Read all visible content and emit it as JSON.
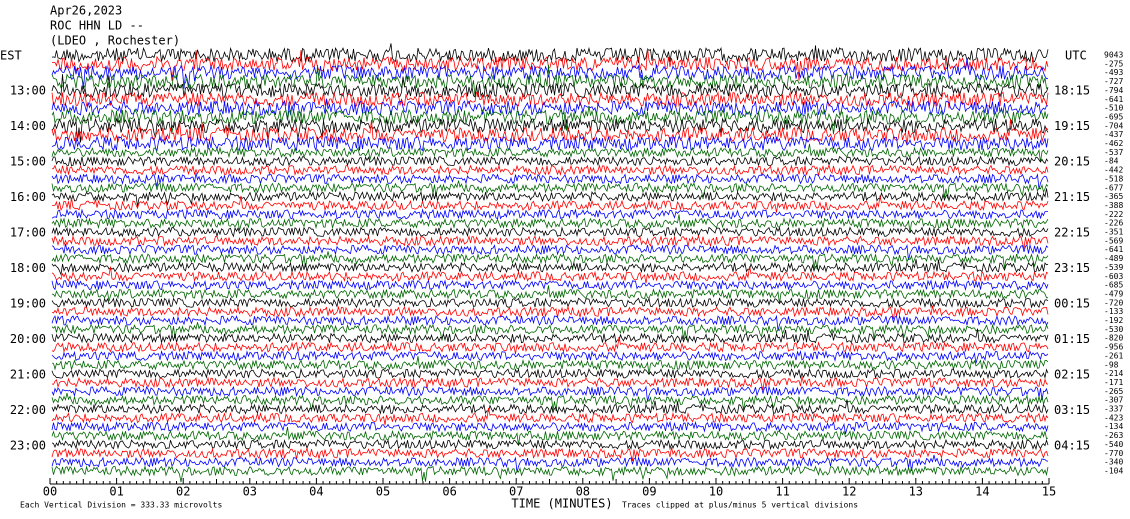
{
  "header": {
    "lines": [
      "Apr26,2023",
      "ROC HHN LD --",
      "(LDEO , Rochester)"
    ]
  },
  "left_axis": {
    "title": "EST",
    "labels": [
      "13:00",
      "14:00",
      "15:00",
      "16:00",
      "17:00",
      "18:00",
      "19:00",
      "20:00",
      "21:00",
      "22:00",
      "23:00"
    ]
  },
  "right_axis": {
    "title": "UTC",
    "labels": [
      "18:15",
      "19:15",
      "20:15",
      "21:15",
      "22:15",
      "23:15",
      "00:15",
      "01:15",
      "02:15",
      "03:15",
      "04:15"
    ]
  },
  "trace_offsets": [
    9043,
    -275,
    -493,
    -727,
    -794,
    -641,
    -510,
    -695,
    -704,
    -437,
    -462,
    -537,
    -84,
    -442,
    -518,
    -677,
    -365,
    -388,
    -222,
    -226,
    -351,
    -569,
    -641,
    -489,
    -539,
    -603,
    -685,
    -479,
    -720,
    -133,
    -192,
    -530,
    -820,
    -956,
    -261,
    -98,
    -214,
    -171,
    -265,
    -307,
    -337,
    -423,
    -134,
    -263,
    -540,
    -770,
    -340,
    -104
  ],
  "x_axis": {
    "title": "TIME (MINUTES)",
    "ticks": [
      "00",
      "01",
      "02",
      "03",
      "04",
      "05",
      "06",
      "07",
      "08",
      "09",
      "10",
      "11",
      "12",
      "13",
      "14",
      "15"
    ]
  },
  "footer": {
    "scale": "Each Vertical Division =  333.33 microvolts",
    "clip": "Traces clipped at plus/minus 5 vertical divisions"
  }
}
